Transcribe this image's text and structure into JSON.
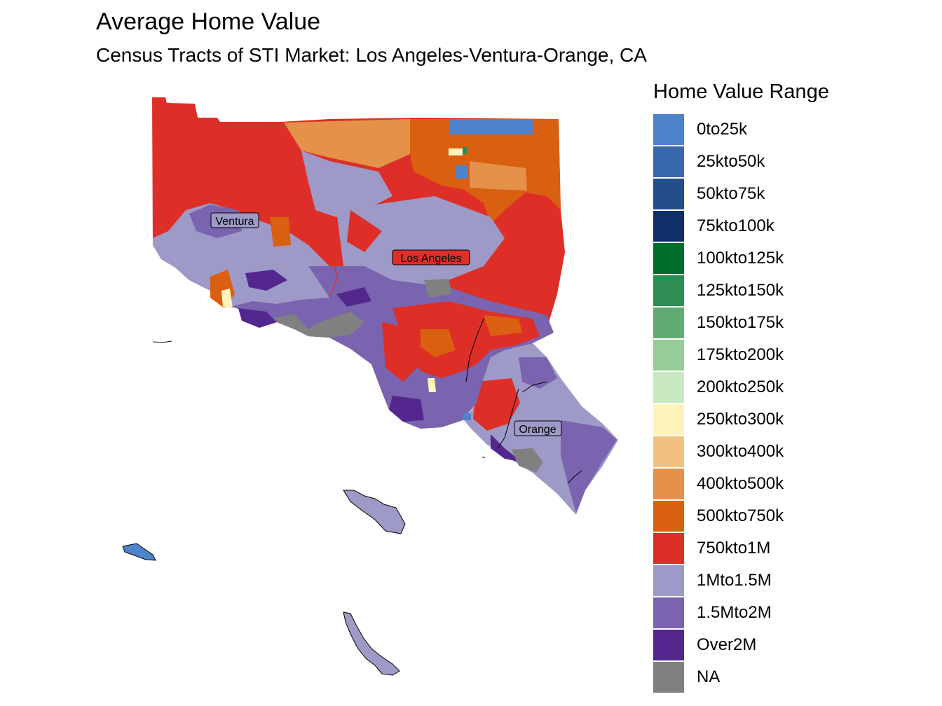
{
  "header": {
    "title": "Average Home Value",
    "subtitle": "Census Tracts of STI Market: Los Angeles-Ventura-Orange, CA"
  },
  "legend": {
    "title": "Home Value Range",
    "items": [
      {
        "label": "0to25k",
        "color": "#4f83cc"
      },
      {
        "label": "25kto50k",
        "color": "#3a68ad"
      },
      {
        "label": "50kto75k",
        "color": "#244d8b"
      },
      {
        "label": "75kto100k",
        "color": "#0e2f67"
      },
      {
        "label": "100kto125k",
        "color": "#006d2c"
      },
      {
        "label": "125kto150k",
        "color": "#2f8c52"
      },
      {
        "label": "150kto175k",
        "color": "#62ab74"
      },
      {
        "label": "175kto200k",
        "color": "#97cc98"
      },
      {
        "label": "200kto250k",
        "color": "#c7e8c0"
      },
      {
        "label": "250kto300k",
        "color": "#fef4bb"
      },
      {
        "label": "300kto400k",
        "color": "#f1c27f"
      },
      {
        "label": "400kto500k",
        "color": "#e5914a"
      },
      {
        "label": "500kto750k",
        "color": "#d95f11"
      },
      {
        "label": "750kto1M",
        "color": "#dd2f27"
      },
      {
        "label": "1Mto1.5M",
        "color": "#9e9ac8"
      },
      {
        "label": "1.5Mto2M",
        "color": "#7a63af"
      },
      {
        "label": "Over2M",
        "color": "#54278f"
      },
      {
        "label": "NA",
        "color": "#808080"
      }
    ]
  },
  "map": {
    "labels": {
      "ventura": "Ventura",
      "los_angeles": "Los Angeles",
      "orange": "Orange"
    }
  }
}
